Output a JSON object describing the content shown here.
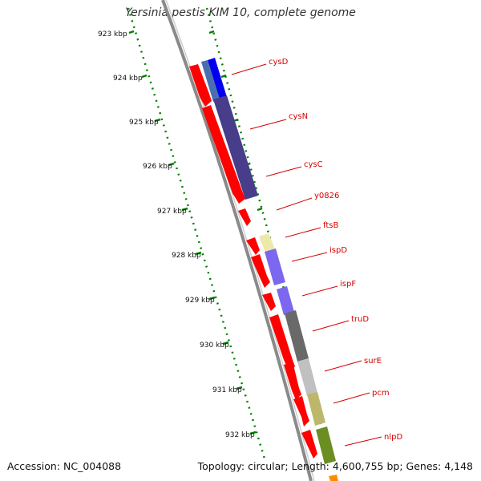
{
  "title": "Yersinia pestis KIM 10, complete genome",
  "footer": {
    "accession": "Accession: NC_004088",
    "summary": "Topology: circular; Length: 4,600,755 bp; Genes: 4,148"
  },
  "colors": {
    "backbone": "#8a8a8a",
    "ticks": "#008000",
    "label": "#d40000",
    "forward_gene": "#ff0000"
  },
  "ruler": {
    "labels": [
      "923 kbp",
      "924 kbp",
      "925 kbp",
      "926 kbp",
      "927 kbp",
      "928 kbp",
      "929 kbp",
      "930 kbp",
      "931 kbp",
      "932 kbp"
    ]
  },
  "genes": [
    {
      "name": "cysD",
      "color": "#0000ee"
    },
    {
      "name": "cysN",
      "color": "#483d8b"
    },
    {
      "name": "cysC",
      "color": "#483d8b"
    },
    {
      "name": "y0826",
      "color": "#ff0000"
    },
    {
      "name": "ftsB",
      "color": "#eee8aa"
    },
    {
      "name": "ispD",
      "color": "#7b68ee"
    },
    {
      "name": "ispF",
      "color": "#7b68ee"
    },
    {
      "name": "truD",
      "color": "#696969"
    },
    {
      "name": "surE",
      "color": "#c0c0c0"
    },
    {
      "name": "pcm",
      "color": "#bdb76b"
    },
    {
      "name": "nlpD",
      "color": "#6b8e23"
    }
  ]
}
